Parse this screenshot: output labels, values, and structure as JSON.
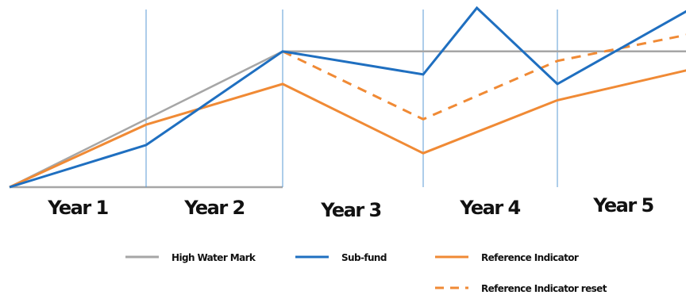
{
  "chart_data": {
    "type": "line",
    "categories": [
      "Year 1",
      "Year 2",
      "Year 3",
      "Year 4",
      "Year 5"
    ],
    "x_boundaries": [
      0,
      1,
      2,
      3,
      4,
      5
    ],
    "grid": false,
    "legend_position": "bottom",
    "series": [
      {
        "name": "High Water Mark",
        "color": "#a6a6a6",
        "style": "solid",
        "points": [
          [
            0,
            0
          ],
          [
            2,
            100
          ],
          [
            5,
            100
          ]
        ]
      },
      {
        "name": "Sub-fund",
        "color": "#1f6fc0",
        "style": "solid",
        "points": [
          [
            0,
            0
          ],
          [
            1,
            31
          ],
          [
            2,
            100
          ],
          [
            3,
            83
          ],
          [
            3.4,
            132
          ],
          [
            4,
            76
          ],
          [
            5,
            132
          ]
        ]
      },
      {
        "name": "Reference Indicator",
        "color": "#f08a35",
        "style": "solid",
        "points": [
          [
            0,
            0
          ],
          [
            1,
            46
          ],
          [
            2,
            76
          ],
          [
            3,
            25
          ],
          [
            4,
            64
          ],
          [
            5,
            87
          ]
        ]
      },
      {
        "name": "Reference Indicator reset",
        "color": "#f08a35",
        "style": "dashed",
        "points": [
          [
            2,
            100
          ],
          [
            3,
            50
          ],
          [
            4,
            93
          ],
          [
            5,
            113
          ]
        ]
      }
    ]
  }
}
